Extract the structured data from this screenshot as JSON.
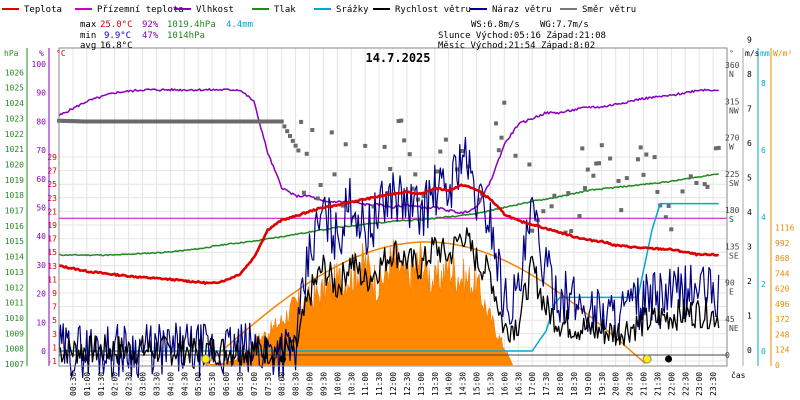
{
  "chart_data": {
    "type": "line",
    "title": "14.7.2025",
    "legend": [
      {
        "name": "Teplota",
        "color": "#dd0000"
      },
      {
        "name": "Přízemní teplota",
        "color": "#cc00cc"
      },
      {
        "name": "Vlhkost",
        "color": "#8800bb"
      },
      {
        "name": "Tlak",
        "color": "#228822"
      },
      {
        "name": "Srážky",
        "color": "#00aacc"
      },
      {
        "name": "Rychlost větru",
        "color": "#000000"
      },
      {
        "name": "Náraz větru",
        "color": "#000080"
      },
      {
        "name": "Směr větru",
        "color": "#777777"
      }
    ],
    "stats": {
      "max_label": "max",
      "min_label": "min",
      "avg_label": "avg",
      "max_temp": "25.0°C",
      "max_hum": "92%",
      "max_press": "1019.4hPa",
      "max_rain": "4.4mm",
      "min_temp": "9.9°C",
      "min_hum": "47%",
      "min_press": "1014hPa",
      "avg_temp": "16.8°C"
    },
    "info": {
      "ws": "WS:6.8m/s",
      "wg": "WG:7.7m/s",
      "sun": "Slunce Východ:05:16  Západ:21:08",
      "moon": "Měsíc  Východ:21:54  Západ:8:02"
    },
    "axes": {
      "hpa_unit": "hPa",
      "pct_unit": "%",
      "c_unit": "°C",
      "deg_unit": "°",
      "ms_unit": "m/s",
      "mm_unit": "mm",
      "wm_unit": "W/m²",
      "hpa_ticks": [
        "1026",
        "1025",
        "1024",
        "1023",
        "1022",
        "1021",
        "1020",
        "1019",
        "1018",
        "1017",
        "1016",
        "1015",
        "1014",
        "1013",
        "1012",
        "1011",
        "1010",
        "1009",
        "1008",
        "1007"
      ],
      "pct_ticks": [
        "100",
        "90",
        "80",
        "70",
        "60",
        "50",
        "40",
        "30",
        "20",
        "10",
        "0"
      ],
      "c_ticks": [
        "29",
        "27",
        "25",
        "23",
        "21",
        "19",
        "17",
        "15",
        "13",
        "11",
        "9",
        "7",
        "5",
        "3",
        "1",
        "-1"
      ],
      "dir_ticks": [
        {
          "deg": "360",
          "lbl": "N"
        },
        {
          "deg": "315",
          "lbl": "NW"
        },
        {
          "deg": "270",
          "lbl": "W"
        },
        {
          "deg": "225",
          "lbl": "SW"
        },
        {
          "deg": "180",
          "lbl": "S"
        },
        {
          "deg": "135",
          "lbl": "SE"
        },
        {
          "deg": "90",
          "lbl": "E"
        },
        {
          "deg": "45",
          "lbl": "NE"
        },
        {
          "deg": "0",
          "lbl": ""
        }
      ],
      "ms_ticks": [
        "9",
        "8",
        "7",
        "6",
        "5",
        "4",
        "3",
        "2",
        "1",
        "0"
      ],
      "mm_ticks": [
        "8",
        "6",
        "4",
        "2",
        "0"
      ],
      "wm_ticks": [
        "1116",
        "992",
        "868",
        "744",
        "620",
        "496",
        "372",
        "248",
        "124",
        "0"
      ],
      "time_ticks": [
        "00:30",
        "01:00",
        "01:30",
        "02:00",
        "02:30",
        "03:00",
        "03:30",
        "04:00",
        "04:30",
        "05:00",
        "05:30",
        "06:00",
        "06:30",
        "07:00",
        "07:30",
        "08:00",
        "08:30",
        "09:00",
        "09:30",
        "10:00",
        "10:30",
        "11:00",
        "11:30",
        "12:00",
        "12:30",
        "13:00",
        "13:30",
        "14:00",
        "14:30",
        "15:00",
        "15:30",
        "16:00",
        "16:30",
        "17:00",
        "17:30",
        "18:00",
        "18:30",
        "19:00",
        "19:30",
        "20:00",
        "20:30",
        "21:00",
        "21:30",
        "22:00",
        "22:30",
        "23:00",
        "23:30"
      ],
      "time_unit": "čas"
    },
    "series": {
      "temperature_c": {
        "t": [
          0,
          1,
          2,
          3,
          4,
          5,
          5.5,
          6,
          6.5,
          7,
          7.5,
          8,
          8.5,
          9,
          9.5,
          10,
          10.5,
          11,
          11.5,
          12,
          12.5,
          13,
          13.5,
          14,
          14.5,
          15,
          15.5,
          16,
          16.5,
          17,
          17.5,
          18,
          18.5,
          19,
          19.5,
          20,
          21,
          22,
          23,
          23.7
        ],
        "v": [
          13.0,
          12.2,
          11.7,
          11.3,
          11.0,
          10.6,
          10.4,
          10.9,
          11.8,
          14.2,
          18.3,
          19.7,
          20.3,
          21.0,
          21.6,
          21.9,
          22.4,
          22.8,
          23.2,
          23.6,
          23.9,
          23.5,
          24.4,
          24.1,
          24.9,
          24.2,
          22.8,
          20.6,
          19.6,
          19.1,
          18.5,
          17.9,
          17.3,
          16.8,
          16.6,
          16.0,
          15.6,
          15.4,
          14.6,
          14.6
        ]
      },
      "humidity_pct": {
        "t": [
          0,
          1,
          2,
          3,
          4,
          5,
          5.5,
          6,
          6.5,
          7,
          7.5,
          8,
          8.5,
          9,
          9.5,
          10,
          10.5,
          11,
          11.5,
          12,
          12.5,
          13,
          13.5,
          14,
          14.5,
          15,
          15.5,
          16,
          16.5,
          17,
          17.5,
          18,
          18.5,
          19,
          19.5,
          20,
          21,
          22,
          23,
          23.7
        ],
        "v": [
          82,
          87,
          90,
          91,
          91,
          91,
          91,
          91,
          91,
          87,
          69,
          57,
          54,
          54,
          52,
          52,
          52,
          51,
          51,
          50,
          51,
          50,
          50,
          49,
          48,
          50,
          59,
          72,
          79,
          81,
          83,
          83,
          84,
          85,
          85,
          86,
          88,
          89,
          91,
          91
        ]
      },
      "pressure_hpa": {
        "t": [
          0,
          2,
          4,
          5,
          6,
          7,
          8,
          9,
          10,
          11,
          12,
          13,
          14,
          15,
          16,
          17,
          18,
          19,
          20,
          21,
          22,
          23,
          23.7
        ],
        "v": [
          1014.1,
          1014.1,
          1014.3,
          1014.5,
          1014.8,
          1015.0,
          1015.3,
          1015.6,
          1015.9,
          1016.1,
          1016.3,
          1016.4,
          1016.6,
          1016.8,
          1017.2,
          1017.6,
          1017.9,
          1018.3,
          1018.5,
          1018.7,
          1018.9,
          1019.2,
          1019.4
        ]
      },
      "dew_point_c": {
        "value": 20
      },
      "rain_mm": {
        "t": [
          0,
          17,
          17.5,
          17.8,
          18,
          19,
          20,
          20.8,
          21,
          21.3,
          21.6,
          22,
          23.7
        ],
        "v": [
          0,
          0,
          0.6,
          1.4,
          1.6,
          1.6,
          1.6,
          1.6,
          2.4,
          3.6,
          4.4,
          4.4,
          4.4
        ]
      },
      "solar_wm2": {
        "t": [
          5.3,
          6,
          6.5,
          7,
          7.5,
          8,
          8.5,
          9,
          9.5,
          10,
          10.5,
          11,
          11.5,
          12,
          12.5,
          13,
          13.5,
          14,
          14.5,
          15,
          15.5,
          16,
          16.3
        ],
        "v": [
          0,
          20,
          60,
          200,
          280,
          380,
          520,
          560,
          640,
          720,
          780,
          880,
          680,
          930,
          750,
          920,
          700,
          850,
          750,
          700,
          400,
          150,
          0
        ]
      },
      "solar_clear_wm2": {
        "sunrise": 5.27,
        "sunset": 21.13,
        "peak": 1000
      },
      "wind_speed_ms": {
        "t": [
          0,
          8.5,
          9,
          9.5,
          10,
          10.5,
          11,
          11.5,
          12,
          12.5,
          13,
          13.5,
          14,
          14.5,
          15,
          15.5,
          16,
          16.5,
          17,
          17.5,
          18,
          19,
          20,
          21,
          22,
          23,
          23.7
        ],
        "v": [
          0,
          0,
          1.6,
          2.4,
          1.8,
          2.6,
          2.0,
          2.4,
          2.9,
          2.6,
          2.4,
          3.0,
          2.7,
          3.4,
          2.6,
          2.2,
          0.6,
          0.8,
          2.4,
          1.2,
          0.8,
          0.6,
          0.5,
          0.8,
          1.0,
          1.1,
          1.0
        ]
      },
      "wind_gust_ms": {
        "t": [
          0,
          8.5,
          9,
          9.5,
          10,
          10.5,
          11,
          11.5,
          12,
          12.5,
          13,
          13.5,
          14,
          14.5,
          15,
          15.5,
          16,
          16.5,
          17,
          17.5,
          18,
          19,
          20,
          21,
          22,
          23,
          23.7
        ],
        "v": [
          0,
          0,
          2.8,
          4.0,
          3.2,
          4.4,
          3.4,
          4.0,
          4.6,
          4.2,
          4.0,
          4.6,
          4.6,
          5.8,
          4.4,
          3.8,
          1.4,
          1.6,
          4.0,
          2.2,
          1.6,
          1.2,
          1.0,
          1.4,
          1.6,
          1.8,
          1.6
        ]
      },
      "wind_dir_deg": {
        "t": [
          0,
          1,
          2,
          3,
          4,
          5,
          6,
          7,
          8,
          9,
          10,
          11,
          12,
          13,
          14,
          15,
          16,
          17,
          18,
          19,
          20,
          21,
          22,
          23
        ],
        "v": [
          291,
          290,
          290,
          290,
          290,
          290,
          290,
          290,
          290,
          230,
          245,
          200,
          260,
          210,
          240,
          250,
          260,
          195,
          190,
          210,
          200,
          220,
          200,
          225
        ]
      }
    },
    "markers": [
      {
        "type": "sunrise",
        "time": 5.27
      },
      {
        "type": "moonset",
        "time": 8.03
      },
      {
        "type": "sunset",
        "time": 21.13
      },
      {
        "type": "moonrise",
        "time": 21.9
      }
    ]
  }
}
